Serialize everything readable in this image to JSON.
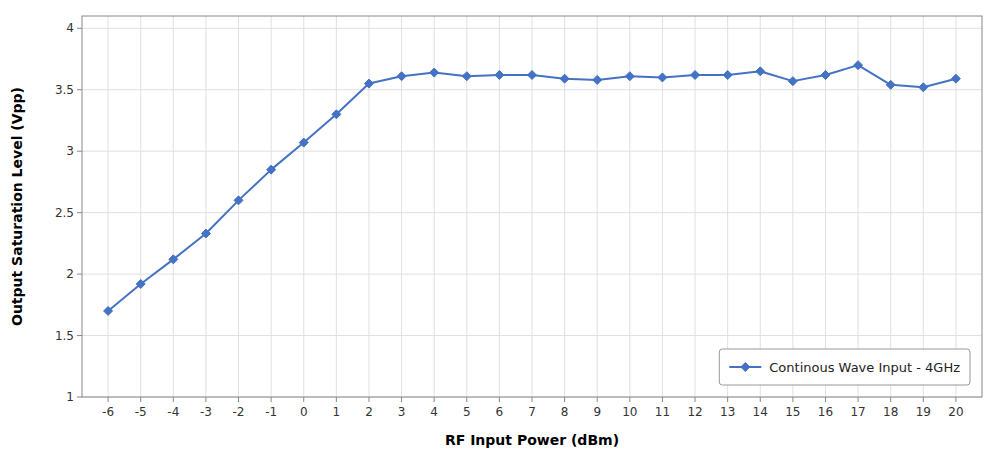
{
  "chart_data": {
    "type": "line",
    "xlabel": "RF Input Power (dBm)",
    "ylabel": "Output Saturation Level (Vpp)",
    "x": [
      -6,
      -5,
      -4,
      -3,
      -2,
      -1,
      0,
      1,
      2,
      3,
      4,
      5,
      6,
      7,
      8,
      9,
      10,
      11,
      12,
      13,
      14,
      15,
      16,
      17,
      18,
      19,
      20
    ],
    "series": [
      {
        "name": "Continous Wave Input - 4GHz",
        "color": "#4472c4",
        "marker": "diamond",
        "values": [
          1.7,
          1.92,
          2.12,
          2.33,
          2.6,
          2.85,
          3.07,
          3.3,
          3.55,
          3.61,
          3.64,
          3.61,
          3.62,
          3.62,
          3.59,
          3.58,
          3.61,
          3.6,
          3.62,
          3.62,
          3.65,
          3.57,
          3.62,
          3.7,
          3.54,
          3.52,
          3.59
        ]
      }
    ],
    "xlim": [
      -6.8,
      20.8
    ],
    "ylim": [
      1.0,
      4.1
    ],
    "xticks": [
      -6,
      -5,
      -4,
      -3,
      -2,
      -1,
      0,
      1,
      2,
      3,
      4,
      5,
      6,
      7,
      8,
      9,
      10,
      11,
      12,
      13,
      14,
      15,
      16,
      17,
      18,
      19,
      20
    ],
    "yticks": [
      1.0,
      1.5,
      2.0,
      2.5,
      3.0,
      3.5,
      4.0
    ],
    "grid": true,
    "legend": "lower right"
  }
}
